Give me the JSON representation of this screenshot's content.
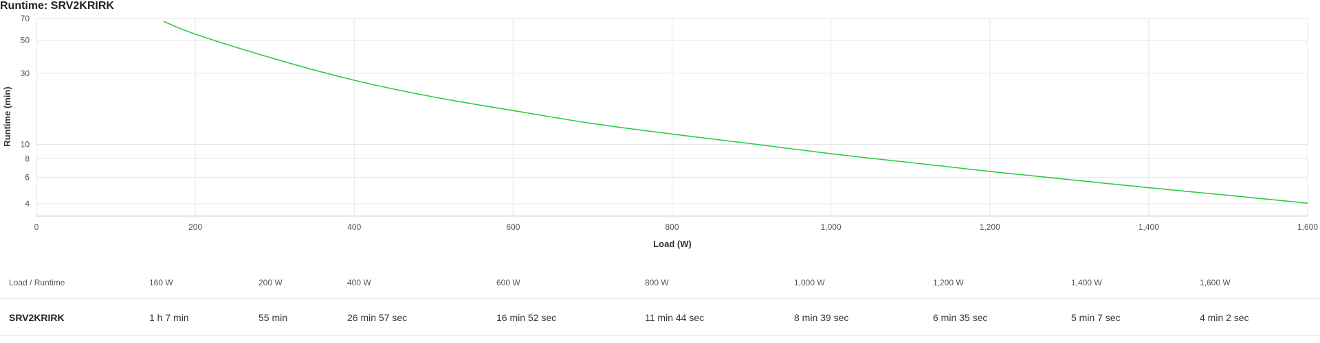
{
  "title": "Runtime: SRV2KRIRK",
  "chart_data": {
    "type": "line",
    "xlabel": "Load (W)",
    "ylabel": "Runtime (min)",
    "xlim": [
      0,
      1600
    ],
    "ylim": [
      3.3,
      70
    ],
    "yscale": "log",
    "grid": true,
    "x_ticks": [
      0,
      200,
      400,
      600,
      800,
      1000,
      1200,
      1400,
      1600
    ],
    "x_tick_labels": [
      "0",
      "200",
      "400",
      "600",
      "800",
      "1,000",
      "1,200",
      "1,400",
      "1,600"
    ],
    "y_ticks": [
      4,
      6,
      8,
      10,
      30,
      50,
      70
    ],
    "y_tick_labels": [
      "4",
      "6",
      "8",
      "10",
      "30",
      "50",
      "70"
    ],
    "series": [
      {
        "color": "#2ecc40",
        "x": [
          160,
          200,
          300,
          400,
          500,
          600,
          700,
          800,
          900,
          1000,
          1100,
          1200,
          1300,
          1400,
          1500,
          1600
        ],
        "y": [
          67,
          55,
          37.5,
          26.95,
          20.8,
          16.87,
          13.8,
          11.73,
          10.1,
          8.65,
          7.55,
          6.58,
          5.8,
          5.12,
          4.55,
          4.03
        ]
      }
    ]
  },
  "table": {
    "header_label": "Load / Runtime",
    "loads": [
      "160 W",
      "200 W",
      "400 W",
      "600 W",
      "800 W",
      "1,000 W",
      "1,200 W",
      "1,400 W",
      "1,600 W"
    ],
    "row_label": "SRV2KRIRK",
    "runtimes": [
      "1 h 7 min",
      "55 min",
      "26 min 57 sec",
      "16 min 52 sec",
      "11 min 44 sec",
      "8 min 39 sec",
      "6 min 35 sec",
      "5 min 7 sec",
      "4 min 2 sec"
    ]
  }
}
